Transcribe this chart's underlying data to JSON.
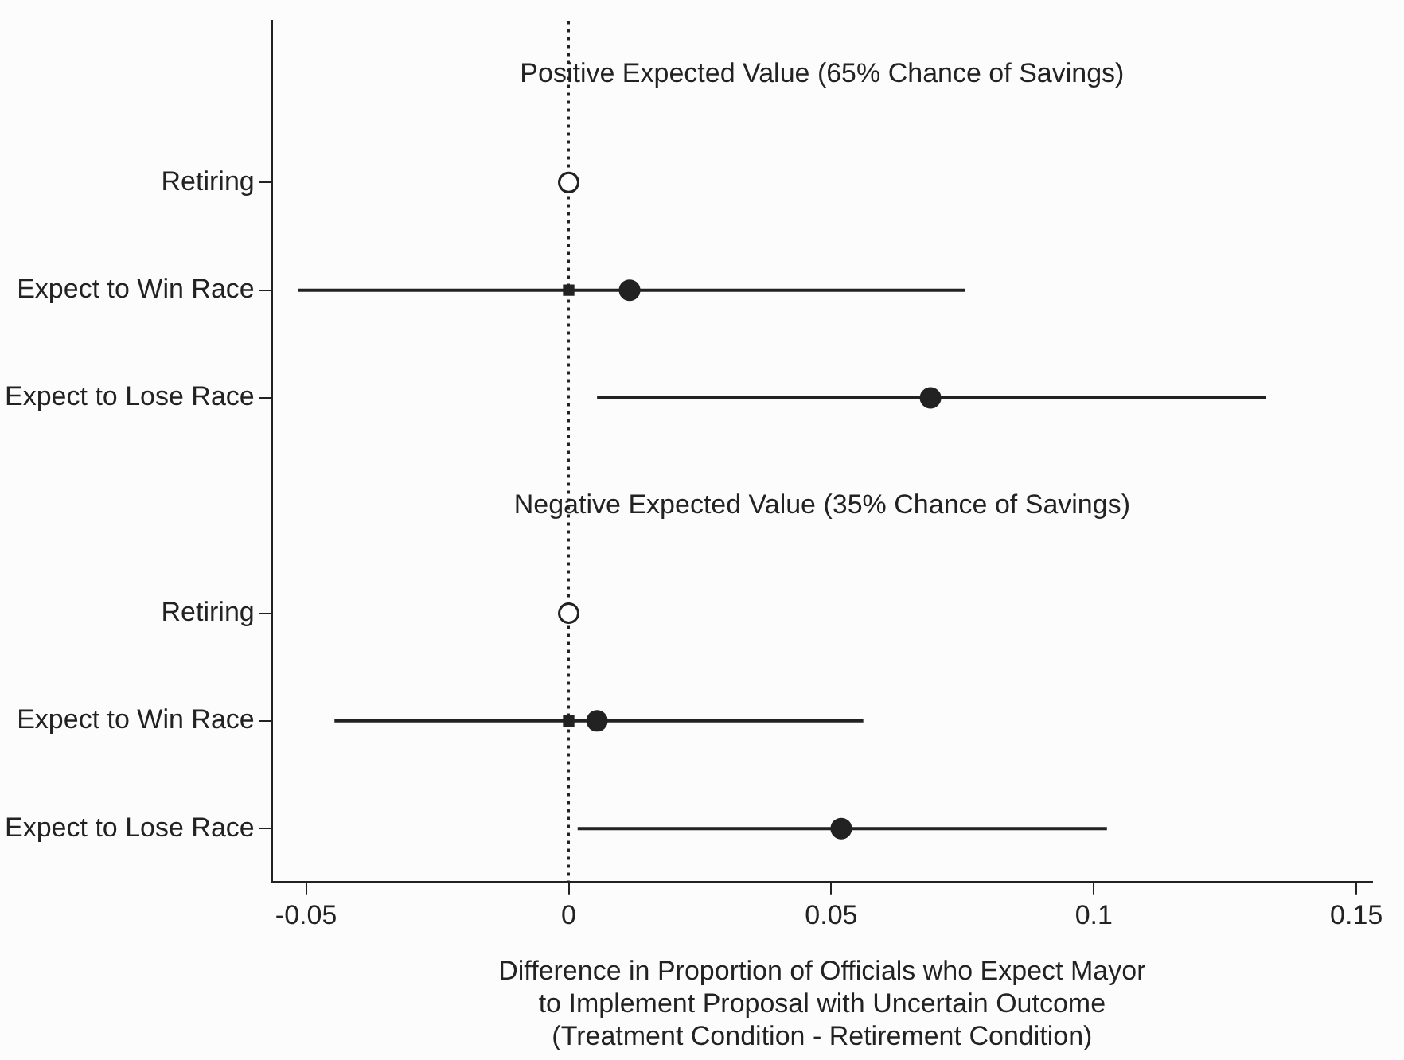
{
  "chart_data": {
    "type": "scatter",
    "orientation": "horizontal",
    "categories": [
      null,
      "Retiring",
      "Expect to Win Race",
      "Expect to Lose Race",
      null,
      "Retiring",
      "Expect to Win Race",
      "Expect to Lose Race"
    ],
    "series": [
      {
        "color": "#ffffff",
        "marker": "circle",
        "values": [
          null,
          0,
          null,
          null,
          null,
          0,
          null,
          null
        ]
      },
      {
        "color": "#222222",
        "marker": "square",
        "values": [
          null,
          null,
          0,
          null,
          null,
          null,
          0,
          null
        ]
      },
      {
        "color": "#222222",
        "marker": "circle",
        "values": [
          null,
          null,
          0.0116,
          0.0689,
          null,
          null,
          0.0054,
          0.0519
        ],
        "errors": [
          null,
          null,
          [
            -0.0515,
            0.0754
          ],
          [
            0.0054,
            0.1327
          ],
          null,
          null,
          [
            -0.0446,
            0.0561
          ],
          [
            0.0017,
            0.1025
          ]
        ]
      }
    ],
    "xlim": [
      -0.0565,
      0.153
    ],
    "xticks": [
      -0.05,
      0,
      0.05,
      0.1,
      0.15
    ],
    "xlabel": "Difference in Proportion of Officials who Expect Mayor\nto Implement Proposal with Uncertain Outcome\n(Treatment Condition - Retirement Condition)",
    "annotations": [
      "Positive Expected Value (65% Chance of Savings)",
      "Negative Expected Value (35% Chance of Savings)"
    ],
    "ref_lines": [
      {
        "axis": "x",
        "value": 0,
        "line_style": "dotted",
        "color": "#222222"
      }
    ],
    "grid": false,
    "legend": false
  }
}
